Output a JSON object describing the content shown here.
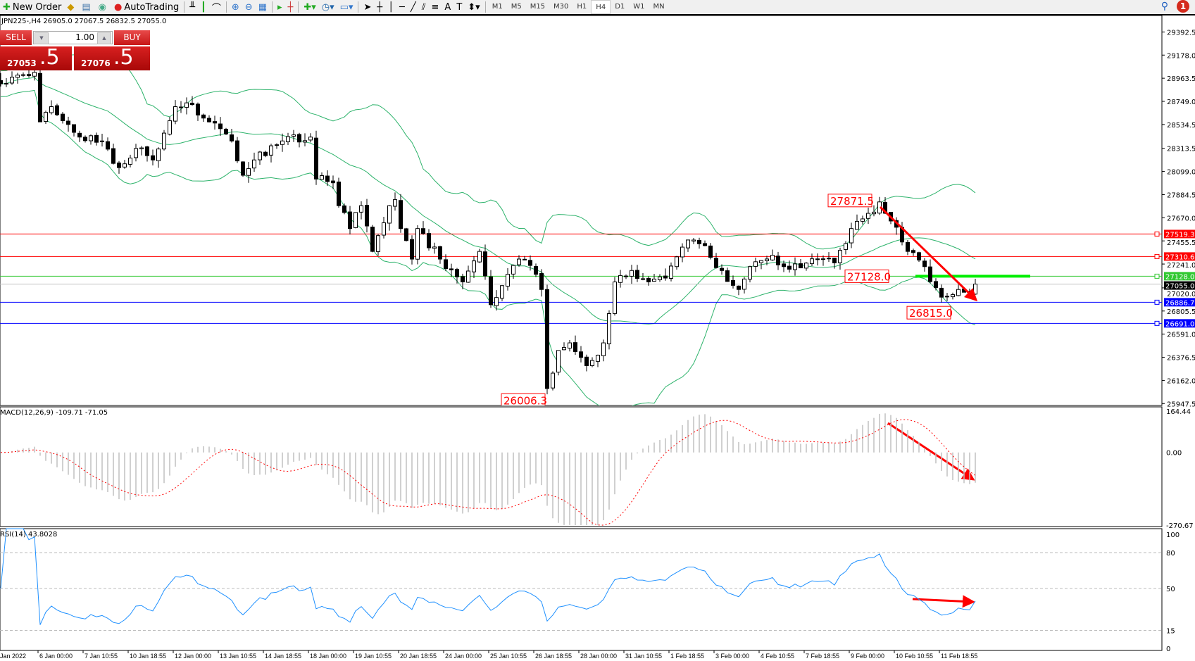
{
  "toolbar": {
    "new_order": "New Order",
    "autotrading": "AutoTrading",
    "timeframes": [
      "M1",
      "M5",
      "M15",
      "M30",
      "H1",
      "H4",
      "D1",
      "W1",
      "MN"
    ],
    "active_timeframe": "H4",
    "notification_count": "1"
  },
  "chart": {
    "title": "JPN225-,H4  26905.0 27067.5 26832.5 27055.0"
  },
  "one_click": {
    "sell_label": "SELL",
    "buy_label": "BUY",
    "lot": "1.00",
    "sell_main": "27053",
    "sell_pip": ".5",
    "buy_main": "27076",
    "buy_pip": ".5"
  },
  "price_axis": {
    "ticks": [
      "29392.5",
      "29178.0",
      "28963.5",
      "28749.0",
      "28534.5",
      "28313.5",
      "28099.0",
      "27884.5",
      "27670.0",
      "27455.5",
      "27241.0",
      "27020.0",
      "26805.5",
      "26591.0",
      "26376.5",
      "26162.0",
      "25947.5"
    ],
    "range": [
      25947.5,
      29392.5
    ]
  },
  "levels": [
    {
      "price": 27519.3,
      "label": "27519.3",
      "color": "#ff0000"
    },
    {
      "price": 27310.6,
      "label": "27310.6",
      "color": "#ff0000"
    },
    {
      "price": 27128.0,
      "label": "27128.0",
      "color": "#32c832"
    },
    {
      "price": 27055.0,
      "label": "27055.0",
      "color": "#000000",
      "line": "#c0c0c0"
    },
    {
      "price": 26886.7,
      "label": "26886.7",
      "color": "#0000ff"
    },
    {
      "price": 26691.0,
      "label": "26691.0",
      "color": "#0000ff"
    }
  ],
  "annotations": [
    {
      "text": "27871.5",
      "bar": 147,
      "price": 27830
    },
    {
      "text": "27128.0",
      "bar": 150,
      "price": 27128
    },
    {
      "text": "26815.0",
      "bar": 161,
      "price": 26790
    },
    {
      "text": "26006.3",
      "bar": 89,
      "price": 25980
    }
  ],
  "price_path": [
    [
      0,
      28912
    ],
    [
      6,
      29018
    ],
    [
      7,
      28559
    ],
    [
      9,
      28700
    ],
    [
      14,
      28418
    ],
    [
      18,
      28382
    ],
    [
      21,
      28135
    ],
    [
      24,
      28312
    ],
    [
      27,
      28206
    ],
    [
      31,
      28700
    ],
    [
      33,
      28735
    ],
    [
      37,
      28559
    ],
    [
      41,
      28382
    ],
    [
      43,
      28064
    ],
    [
      45,
      28206
    ],
    [
      50,
      28382
    ],
    [
      55,
      28418
    ],
    [
      56,
      28029
    ],
    [
      59,
      27994
    ],
    [
      60,
      27782
    ],
    [
      62,
      27570
    ],
    [
      64,
      27782
    ],
    [
      66,
      27358
    ],
    [
      69,
      27782
    ],
    [
      70,
      27838
    ],
    [
      71,
      27570
    ],
    [
      73,
      27287
    ],
    [
      74,
      27570
    ],
    [
      78,
      27287
    ],
    [
      82,
      27075
    ],
    [
      85,
      27358
    ],
    [
      87,
      26864
    ],
    [
      90,
      27146
    ],
    [
      92,
      27287
    ],
    [
      95,
      27146
    ],
    [
      96,
      27005
    ],
    [
      97,
      26087
    ],
    [
      99,
      26440
    ],
    [
      101,
      26510
    ],
    [
      104,
      26299
    ],
    [
      107,
      26510
    ],
    [
      109,
      27075
    ],
    [
      112,
      27181
    ],
    [
      115,
      27075
    ],
    [
      118,
      27111
    ],
    [
      122,
      27464
    ],
    [
      124,
      27429
    ],
    [
      128,
      27181
    ],
    [
      131,
      27005
    ],
    [
      133,
      27217
    ],
    [
      137,
      27323
    ],
    [
      139,
      27217
    ],
    [
      146,
      27287
    ],
    [
      148,
      27252
    ],
    [
      151,
      27570
    ],
    [
      154,
      27711
    ],
    [
      156,
      27817
    ],
    [
      158,
      27640
    ],
    [
      161,
      27358
    ],
    [
      164,
      27217
    ],
    [
      167,
      26934
    ],
    [
      170,
      27005
    ],
    [
      172,
      26970
    ],
    [
      173,
      27055
    ]
  ],
  "macd": {
    "title": "MACD(12,26,9) -109.71 -71.05",
    "ticks": [
      "164.44",
      "0.00",
      "-270.67"
    ],
    "range": [
      -270.67,
      164.44
    ]
  },
  "rsi": {
    "title": "RSI(14) 43.8028",
    "ticks": [
      "100",
      "80",
      "50",
      "15",
      "0"
    ],
    "levels": [
      80,
      50,
      15
    ]
  },
  "time_axis": [
    "Jan 2022",
    "6 Jan 00:00",
    "7 Jan 10:55",
    "10 Jan 18:55",
    "12 Jan 00:00",
    "13 Jan 10:55",
    "14 Jan 18:55",
    "18 Jan 00:00",
    "19 Jan 10:55",
    "20 Jan 18:55",
    "24 Jan 00:00",
    "25 Jan 10:55",
    "26 Jan 18:55",
    "28 Jan 00:00",
    "31 Jan 10:55",
    "1 Feb 18:55",
    "3 Feb 00:00",
    "4 Feb 10:55",
    "7 Feb 18:55",
    "9 Feb 00:00",
    "10 Feb 10:55",
    "11 Feb 18:55"
  ],
  "colors": {
    "band": "#2db36b",
    "signal": "#ff0000",
    "histogram": "#c0c0c0",
    "rsi": "#1e90ff",
    "arrow": "#ff0000",
    "bull": "#ffffff",
    "bear": "#000000"
  }
}
